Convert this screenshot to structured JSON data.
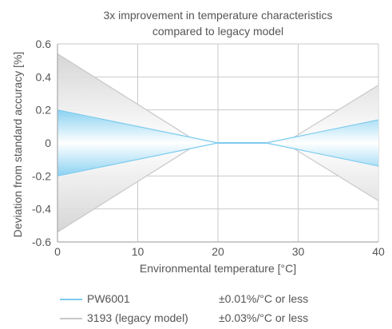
{
  "chart_data": {
    "type": "area",
    "title": [
      "3x improvement in temperature characteristics",
      "compared to legacy model"
    ],
    "xlabel": "Environmental temperature [°C]",
    "ylabel": "Deviation from standard accuracy [%]",
    "xlim": [
      0,
      40
    ],
    "ylim": [
      -0.6,
      0.6
    ],
    "xticks": [
      0,
      10,
      20,
      30,
      40
    ],
    "yticks": [
      0.6,
      0.4,
      0.2,
      0,
      -0.2,
      -0.4,
      -0.6
    ],
    "ytick_labels": [
      "0.6",
      "0.4",
      "0.2",
      "0",
      "-0.2",
      "-0.4",
      "-0.6"
    ],
    "grid": true,
    "legend_position": "bottom",
    "series": [
      {
        "name": "3193 (legacy model)",
        "spec": "±0.03%/°C or less",
        "color": "#c8c8c8",
        "upper": [
          [
            0,
            0.54
          ],
          [
            17,
            0.02
          ],
          [
            20,
            0
          ],
          [
            26,
            0
          ],
          [
            29,
            0.02
          ],
          [
            40,
            0.35
          ]
        ],
        "lower": [
          [
            0,
            -0.54
          ],
          [
            17,
            -0.02
          ],
          [
            20,
            0
          ],
          [
            26,
            0
          ],
          [
            29,
            -0.02
          ],
          [
            40,
            -0.35
          ]
        ]
      },
      {
        "name": "PW6001",
        "spec": "±0.01%/°C or less",
        "color": "#7ccbef",
        "upper": [
          [
            0,
            0.2
          ],
          [
            20,
            0
          ],
          [
            26,
            0
          ],
          [
            40,
            0.14
          ]
        ],
        "lower": [
          [
            0,
            -0.2
          ],
          [
            20,
            0
          ],
          [
            26,
            0
          ],
          [
            40,
            -0.14
          ]
        ]
      }
    ]
  }
}
